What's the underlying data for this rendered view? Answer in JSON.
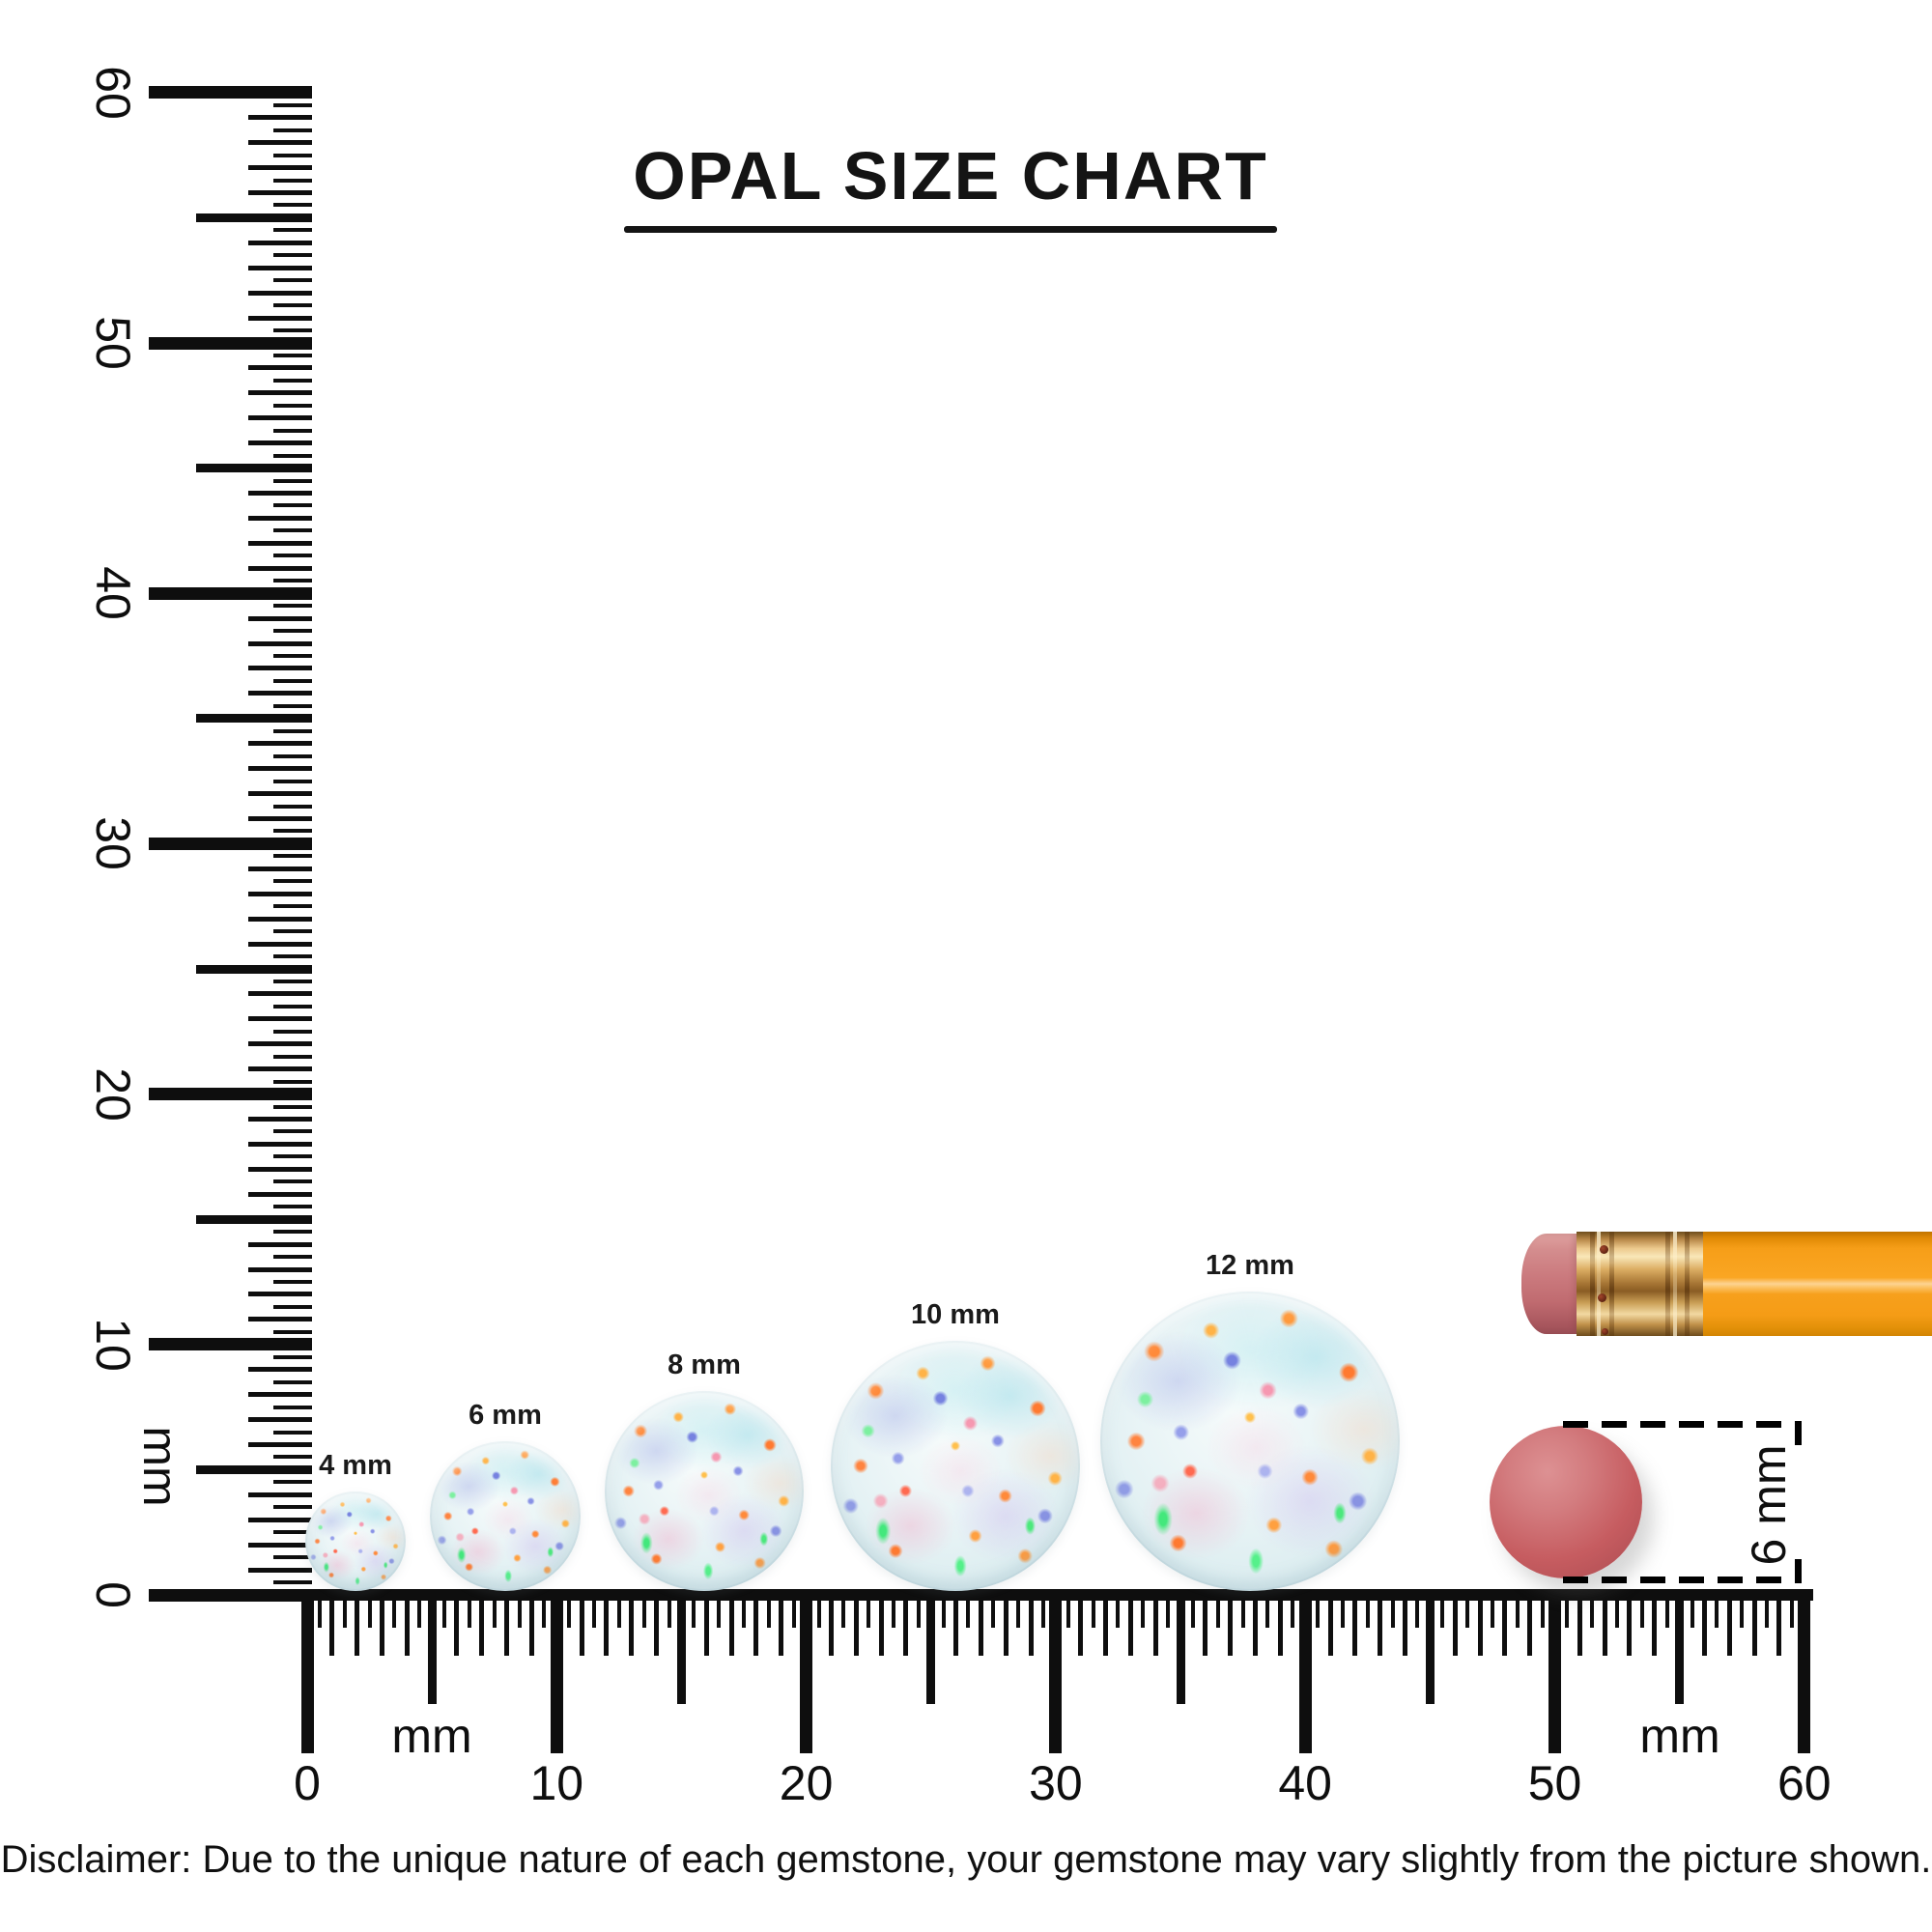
{
  "title": {
    "text": "OPAL SIZE CHART"
  },
  "rulers": {
    "unit": "mm",
    "range_mm": [
      0,
      60
    ],
    "vertical": {
      "tick_labels": [
        "0",
        "10",
        "20",
        "30",
        "40",
        "50",
        "60"
      ],
      "unit_label": "mm"
    },
    "horizontal": {
      "tick_labels": [
        "0",
        "10",
        "20",
        "30",
        "40",
        "50",
        "60"
      ],
      "unit_labels": [
        "mm",
        "mm"
      ]
    }
  },
  "opals": [
    {
      "label": "4 mm",
      "size_mm": 4
    },
    {
      "label": "6 mm",
      "size_mm": 6
    },
    {
      "label": "8 mm",
      "size_mm": 8
    },
    {
      "label": "10 mm",
      "size_mm": 10
    },
    {
      "label": "12 mm",
      "size_mm": 12
    }
  ],
  "reference_objects": {
    "pencil": {
      "eraser_color": "#cb7a7e",
      "ferrule_color": "#c99e55",
      "body_color": "#f7a01c"
    },
    "eraser_disc": {
      "label": "6 mm",
      "diameter_mm": 6,
      "color": "#c65c60"
    }
  },
  "disclaimer": {
    "text": "Disclaimer: Due to the unique nature of each gemstone, your gemstone may vary slightly from the picture shown."
  },
  "colors": {
    "ink": "#0e0e0e",
    "background": "#ffffff",
    "opal_base": "#e7f3f5"
  }
}
